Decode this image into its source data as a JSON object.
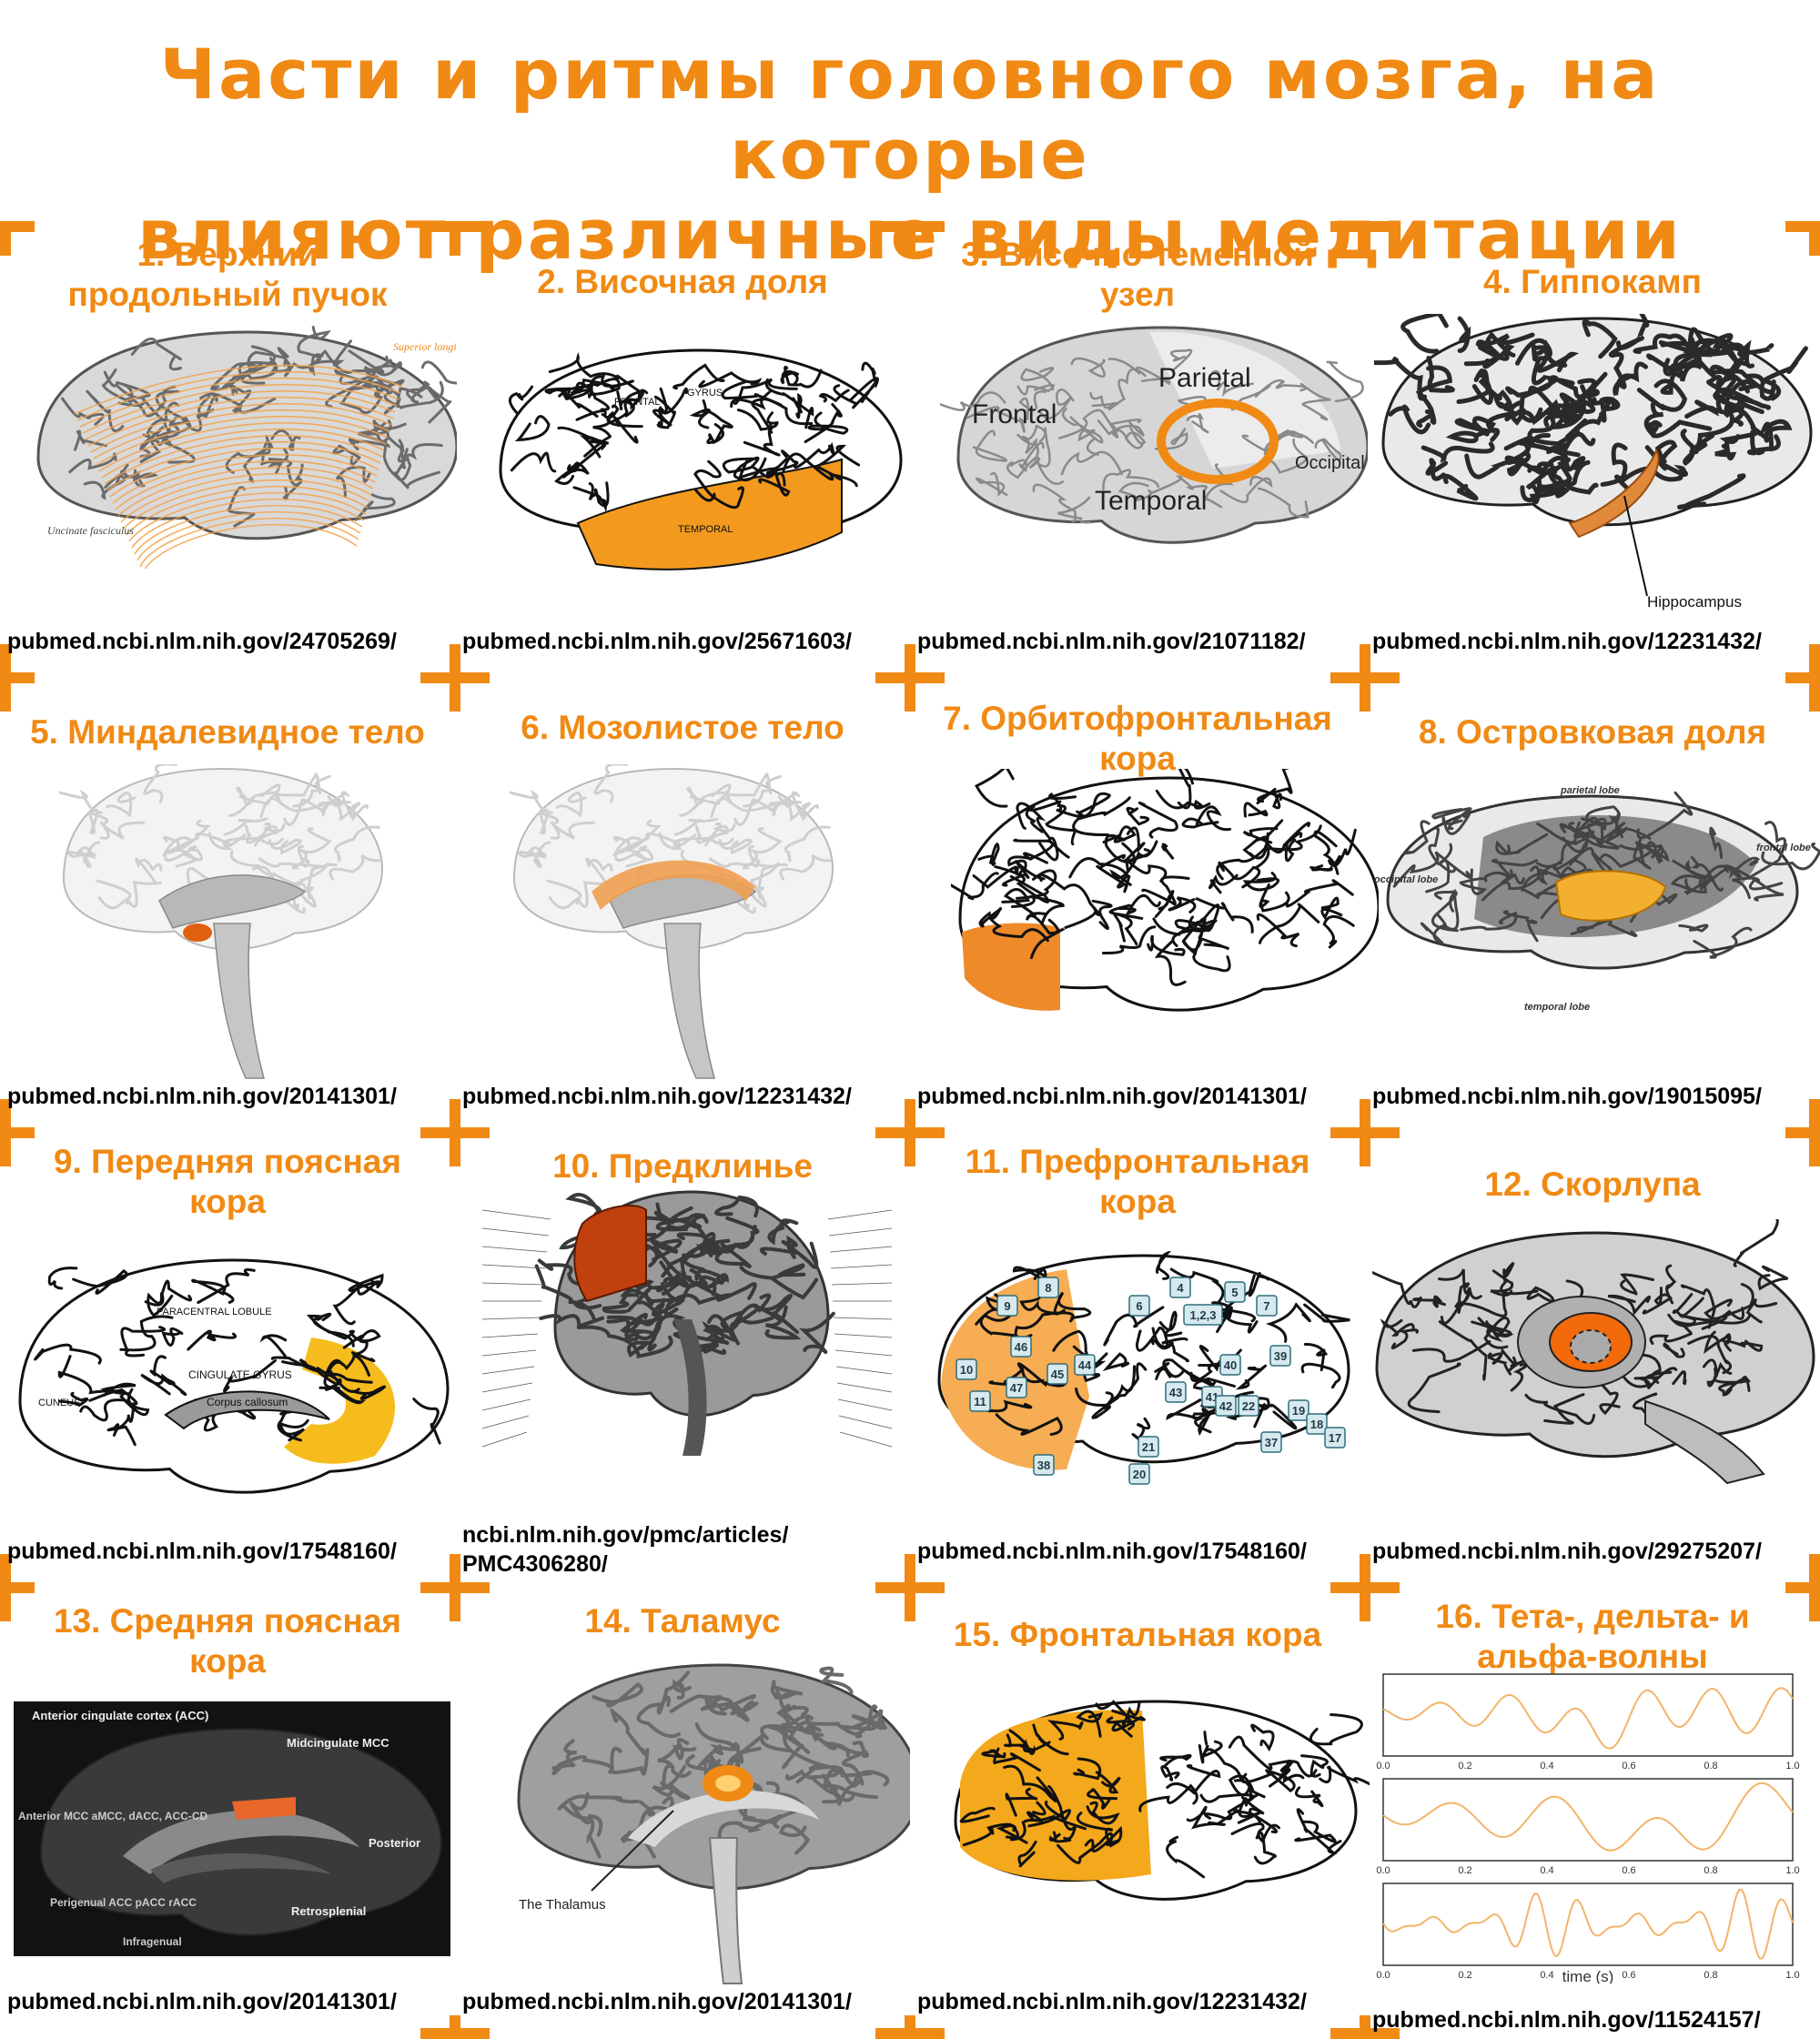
{
  "title": {
    "line1": "Части и ритмы головного мозга, на которые",
    "line2": "влияют различные виды медитации"
  },
  "cells": [
    {
      "title": [
        "1. Верхний",
        "продольный пучок"
      ],
      "url": "pubmed.ncbi.nlm.nih.gov/24705269/",
      "labels": {
        "a": "Superior longitudinal fasciculus",
        "b": "Uncinate fasciculus"
      }
    },
    {
      "title": [
        "2. Височная доля"
      ],
      "url": "pubmed.ncbi.nlm.nih.gov/25671603/",
      "labels": {
        "a": "FRONTAL",
        "b": "GYRUS",
        "c": "TEMPORAL"
      }
    },
    {
      "title": [
        "3. Височно-теменной",
        "узел"
      ],
      "url": "pubmed.ncbi.nlm.nih.gov/21071182/",
      "labels": {
        "frontal": "Frontal",
        "parietal": "Parietal",
        "temporal": "Temporal",
        "occipital": "Occipital"
      }
    },
    {
      "title": [
        "4. Гиппокамп"
      ],
      "url": "pubmed.ncbi.nlm.nih.gov/12231432/",
      "labels": {
        "a": "Hippocampus"
      }
    },
    {
      "title": [
        "5. Миндалевидное тело"
      ],
      "url": "pubmed.ncbi.nlm.nih.gov/20141301/"
    },
    {
      "title": [
        "6. Мозолистое тело"
      ],
      "url": "pubmed.ncbi.nlm.nih.gov/12231432/"
    },
    {
      "title": [
        "7. Орбитофронтальная",
        "кора"
      ],
      "url": "pubmed.ncbi.nlm.nih.gov/20141301/"
    },
    {
      "title": [
        "8. Островковая доля"
      ],
      "url": "pubmed.ncbi.nlm.nih.gov/19015095/",
      "labels": {
        "a": "parietal lobe",
        "b": "occipital lobe",
        "c": "frontal lobe",
        "d": "temporal lobe"
      }
    },
    {
      "title": [
        "9. Передняя поясная",
        "кора"
      ],
      "url": "pubmed.ncbi.nlm.nih.gov/17548160/",
      "labels": {
        "a": "CINGULATE GYRUS",
        "b": "Corpus callosum",
        "c": "PARACENTRAL LOBULE",
        "d": "CUNEUS"
      }
    },
    {
      "title": [
        "10. Предклинье"
      ],
      "url": "ncbi.nlm.nih.gov/pmc/articles/",
      "url2": "PMC4306280/"
    },
    {
      "title": [
        "11. Префронтальная",
        "кора"
      ],
      "url": "pubmed.ncbi.nlm.nih.gov/17548160/",
      "areas": [
        "8",
        "9",
        "46",
        "10",
        "47",
        "45",
        "44",
        "11",
        "6",
        "4",
        "1,2,3",
        "5",
        "7",
        "40",
        "39",
        "43",
        "41",
        "42",
        "22",
        "19",
        "18",
        "17",
        "38",
        "21",
        "37",
        "20"
      ]
    },
    {
      "title": [
        "12. Скорлупа"
      ],
      "url": "pubmed.ncbi.nlm.nih.gov/29275207/"
    },
    {
      "title": [
        "13. Средняя поясная",
        "кора"
      ],
      "url": "pubmed.ncbi.nlm.nih.gov/20141301/",
      "labels": {
        "acc": "Anterior cingulate cortex (ACC)",
        "mcc": "Midcingulate MCC",
        "amcc": "Anterior MCC aMCC, dACC, ACC-CD",
        "post": "Posterior",
        "pre": "Perigenual ACC pACC rACC",
        "retro": "Retrosplenial",
        "infra": "Infragenual"
      }
    },
    {
      "title": [
        "14. Таламус"
      ],
      "url": "pubmed.ncbi.nlm.nih.gov/20141301/",
      "labels": {
        "a": "The Thalamus"
      }
    },
    {
      "title": [
        "15. Фронтальная кора"
      ],
      "url": "pubmed.ncbi.nlm.nih.gov/12231432/"
    },
    {
      "title": [
        "16. Тета-, дельта- и",
        "альфа-волны"
      ],
      "url": "pubmed.ncbi.nlm.nih.gov/11524157/",
      "xlabel": "time (s)",
      "ticks": [
        "0.0",
        "0.2",
        "0.4",
        "0.6",
        "0.8",
        "1.0"
      ]
    }
  ],
  "colors": {
    "accent": "#f08a14",
    "highlight": "#f39a1e",
    "gray": "#bdbdbd"
  }
}
